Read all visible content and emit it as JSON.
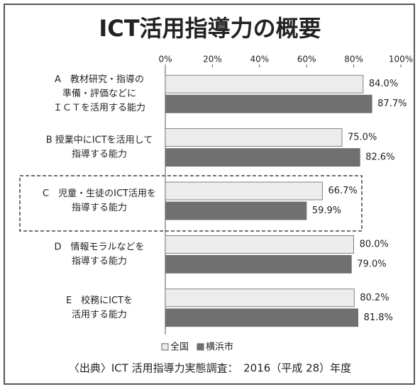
{
  "chart_data": {
    "type": "bar",
    "orientation": "horizontal",
    "title": "ICT活用指導力の概要",
    "categories": [
      [
        "A　教材研究・指導の",
        "準備・評価などに",
        "ＩＣＴを活用する能力"
      ],
      [
        "B 授業中にICTを活用して",
        "指導する能力"
      ],
      [
        "C　児童・生徒のICT活用を",
        "指導する能力"
      ],
      [
        "D　情報モラルなどを",
        "指導する能力"
      ],
      [
        "E　校務にICTを",
        "活用する能力"
      ]
    ],
    "series": [
      {
        "name": "全国",
        "color": "#ececec",
        "values": [
          84.0,
          75.0,
          66.7,
          80.0,
          80.2
        ],
        "value_labels": [
          "84.0%",
          "75.0%",
          "66.7%",
          "80.0%",
          "80.2%"
        ]
      },
      {
        "name": "横浜市",
        "color": "#707070",
        "values": [
          87.7,
          82.6,
          59.9,
          79.0,
          81.8
        ],
        "value_labels": [
          "87.7%",
          "82.6%",
          "59.9%",
          "79.0%",
          "81.8%"
        ]
      }
    ],
    "xlim": [
      0,
      100
    ],
    "xticks": [
      {
        "value": 0,
        "label": "0%"
      },
      {
        "value": 20,
        "label": "20%"
      },
      {
        "value": 40,
        "label": "40%"
      },
      {
        "value": 60,
        "label": "60%"
      },
      {
        "value": 80,
        "label": "80%"
      },
      {
        "value": 100,
        "label": "100%"
      }
    ],
    "source": "〈出典〉ICT 活用指導力実態調査：　2016（平成 28）年度"
  }
}
